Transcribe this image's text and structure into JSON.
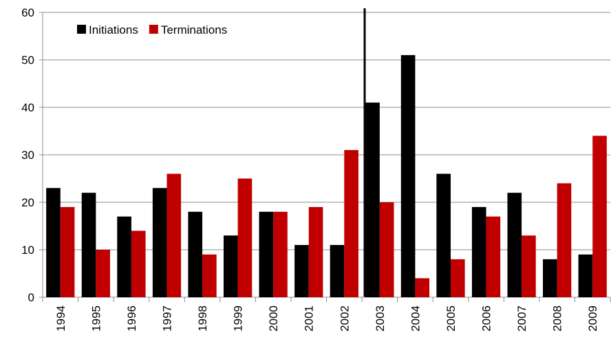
{
  "chart_data": {
    "type": "bar",
    "categories": [
      "1994",
      "1995",
      "1996",
      "1997",
      "1998",
      "1999",
      "2000",
      "2001",
      "2002",
      "2003",
      "2004",
      "2005",
      "2006",
      "2007",
      "2008",
      "2009"
    ],
    "series": [
      {
        "name": "Initiations",
        "color": "#000000",
        "values": [
          23,
          22,
          17,
          23,
          18,
          13,
          18,
          11,
          11,
          41,
          51,
          26,
          19,
          22,
          8,
          9
        ]
      },
      {
        "name": "Terminations",
        "color": "#c00000",
        "values": [
          19,
          10,
          14,
          26,
          9,
          25,
          18,
          19,
          31,
          20,
          4,
          8,
          17,
          13,
          24,
          34
        ]
      }
    ],
    "ylim": [
      0,
      60
    ],
    "yticks": [
      0,
      10,
      20,
      30,
      40,
      50,
      60
    ],
    "grid": true,
    "legend": "top-left"
  }
}
